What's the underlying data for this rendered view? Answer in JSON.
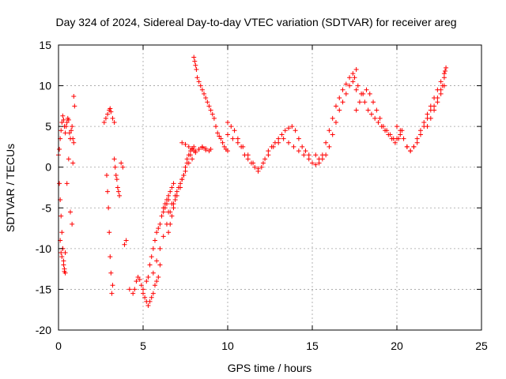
{
  "chart_data": {
    "type": "scatter",
    "title": "Day 324 of 2024, Sidereal Day-to-day VTEC variation (SDTVAR) for receiver areg",
    "xlabel": "GPS time / hours",
    "ylabel": "SDTVAR / TECUs",
    "xlim": [
      0,
      25
    ],
    "ylim": [
      -20,
      15
    ],
    "xticks": [
      0,
      5,
      10,
      15,
      20,
      25
    ],
    "yticks": [
      -20,
      -15,
      -10,
      -5,
      0,
      5,
      10,
      15
    ],
    "grid": true,
    "marker": "+",
    "color": "#ff0000",
    "series": [
      {
        "name": "SDTVAR",
        "x": [
          0.0,
          0.05,
          0.1,
          0.15,
          0.2,
          0.25,
          0.3,
          0.35,
          0.4,
          0.45,
          0.5,
          0.55,
          0.6,
          0.65,
          0.7,
          0.75,
          0.8,
          0.85,
          0.9,
          0.95,
          0.05,
          0.1,
          0.15,
          0.2,
          0.25,
          0.3,
          0.35,
          0.4,
          0.1,
          0.15,
          0.2,
          0.25,
          0.3,
          0.35,
          0.4,
          0.5,
          0.6,
          0.7,
          0.8,
          0.85,
          0.9,
          2.7,
          2.8,
          2.9,
          3.0,
          3.05,
          3.1,
          3.2,
          3.3,
          2.85,
          2.9,
          2.95,
          3.0,
          3.05,
          3.1,
          3.15,
          3.2,
          3.3,
          3.35,
          3.4,
          3.45,
          3.5,
          3.55,
          3.6,
          3.7,
          3.8,
          3.9,
          4.0,
          4.2,
          4.4,
          4.5,
          4.6,
          4.7,
          4.8,
          4.9,
          5.0,
          5.0,
          5.1,
          5.2,
          5.3,
          5.4,
          5.5,
          5.6,
          5.7,
          5.8,
          5.9,
          6.0,
          5.2,
          5.3,
          5.4,
          5.5,
          5.6,
          5.7,
          5.8,
          5.9,
          6.0,
          6.1,
          6.2,
          6.3,
          6.4,
          6.5,
          5.6,
          5.8,
          6.0,
          6.2,
          6.4,
          6.6,
          6.8,
          7.0,
          7.2,
          7.4,
          7.6,
          7.8,
          8.0,
          6.5,
          6.6,
          6.7,
          6.8,
          6.9,
          7.0,
          7.1,
          7.2,
          7.3,
          7.4,
          7.5,
          7.6,
          7.7,
          7.8,
          7.9,
          8.0,
          6.2,
          6.3,
          6.4,
          6.5,
          6.6,
          6.7,
          6.8,
          6.5,
          6.7,
          6.9,
          7.1,
          7.3,
          7.5,
          7.7,
          7.9,
          8.1,
          8.3,
          8.5,
          8.7,
          7.3,
          7.5,
          7.7,
          7.9,
          8.1,
          8.3,
          8.5,
          8.7,
          8.9,
          9.0,
          8.0,
          8.05,
          8.1,
          8.15,
          8.2,
          8.3,
          8.4,
          8.5,
          8.6,
          8.7,
          8.8,
          8.9,
          9.0,
          9.1,
          9.2,
          9.3,
          9.4,
          9.5,
          9.6,
          9.7,
          9.8,
          9.9,
          10.0,
          10.0,
          10.2,
          10.4,
          10.6,
          10.8,
          11.0,
          11.2,
          11.4,
          11.6,
          11.8,
          12.0,
          12.2,
          12.4,
          12.6,
          12.8,
          13.0,
          13.2,
          13.4,
          13.6,
          13.8,
          14.0,
          14.2,
          14.4,
          14.6,
          14.8,
          10.0,
          10.3,
          10.6,
          10.9,
          11.2,
          11.5,
          11.8,
          12.1,
          12.4,
          12.7,
          13.0,
          13.3,
          13.6,
          13.9,
          14.2,
          14.5,
          14.8,
          15.0,
          15.2,
          15.4,
          15.6,
          15.8,
          16.0,
          16.2,
          16.4,
          16.6,
          16.8,
          17.0,
          17.2,
          17.4,
          17.6,
          15.2,
          15.4,
          15.6,
          15.8,
          16.0,
          16.2,
          16.4,
          16.6,
          16.8,
          17.0,
          17.2,
          17.4,
          17.6,
          17.5,
          17.7,
          17.9,
          18.1,
          18.3,
          18.5,
          18.7,
          18.9,
          19.1,
          19.3,
          19.5,
          19.7,
          19.9,
          20.1,
          20.3,
          17.6,
          17.8,
          18.0,
          18.2,
          18.4,
          18.6,
          18.8,
          19.0,
          19.2,
          19.4,
          19.6,
          19.8,
          20.0,
          20.2,
          20.0,
          20.2,
          20.4,
          20.6,
          20.8,
          21.0,
          21.2,
          21.4,
          21.6,
          21.8,
          22.0,
          22.2,
          22.4,
          22.6,
          22.8,
          20.6,
          20.8,
          21.0,
          21.2,
          21.4,
          21.6,
          21.8,
          22.0,
          22.2,
          22.4,
          22.6,
          22.8,
          21.8,
          22.0,
          22.2,
          22.4,
          22.6,
          22.7,
          22.8,
          22.85,
          22.9
        ],
        "y": [
          1.5,
          2.2,
          3.5,
          4.5,
          5.5,
          6.3,
          5.8,
          5.0,
          4.2,
          5.0,
          5.5,
          6.0,
          5.8,
          4.2,
          3.5,
          4.5,
          5.0,
          3.5,
          8.7,
          7.5,
          -2.0,
          -4.0,
          -6.0,
          -8.0,
          -10.0,
          -11.5,
          -12.5,
          -13.0,
          -9.0,
          -10.5,
          -11.0,
          -10.0,
          -12.0,
          -12.8,
          -10.5,
          -2.0,
          1.0,
          -5.5,
          -7.0,
          0.5,
          3.0,
          5.5,
          6.0,
          6.5,
          7.0,
          7.2,
          6.8,
          6.0,
          5.5,
          -1.0,
          -3.0,
          -5.0,
          -8.0,
          -11.0,
          -13.0,
          -15.5,
          -14.5,
          1.0,
          0.0,
          -1.0,
          -1.5,
          -2.5,
          -3.0,
          -3.5,
          0.5,
          0.0,
          -9.5,
          -9.0,
          -15.0,
          -15.5,
          -15.0,
          -14.0,
          -13.5,
          -13.8,
          -14.5,
          -15.5,
          -15.0,
          -16.0,
          -16.5,
          -17.0,
          -16.5,
          -16.0,
          -15.5,
          -14.5,
          -14.0,
          -13.5,
          -12.0,
          -14.0,
          -13.5,
          -12.0,
          -11.0,
          -10.0,
          -9.0,
          -8.0,
          -7.5,
          -7.0,
          -6.0,
          -5.5,
          -5.0,
          -4.5,
          -4.0,
          -13.0,
          -11.5,
          -10.0,
          -8.5,
          -7.0,
          -5.5,
          -4.5,
          -3.5,
          -2.5,
          -1.0,
          0.5,
          1.5,
          2.0,
          -8.0,
          -7.0,
          -6.0,
          -5.0,
          -4.0,
          -3.0,
          -2.5,
          -2.0,
          -1.5,
          -1.0,
          0.0,
          1.0,
          1.5,
          2.0,
          2.2,
          2.5,
          -5.0,
          -4.5,
          -4.0,
          -3.5,
          -3.0,
          -2.5,
          -2.0,
          -5.5,
          -4.5,
          -3.5,
          -2.5,
          -1.5,
          -0.5,
          0.5,
          1.0,
          1.8,
          2.2,
          2.5,
          2.3,
          3.0,
          2.8,
          2.5,
          2.3,
          2.0,
          2.2,
          2.4,
          2.1,
          2.0,
          2.2,
          13.5,
          13.0,
          12.5,
          12.0,
          11.0,
          10.5,
          10.0,
          9.5,
          9.0,
          8.5,
          8.0,
          7.5,
          7.0,
          6.5,
          6.0,
          5.0,
          4.2,
          3.8,
          3.5,
          3.0,
          2.5,
          2.2,
          2.0,
          5.5,
          5.0,
          4.5,
          3.5,
          2.5,
          1.5,
          1.0,
          0.5,
          0.0,
          -0.5,
          0.0,
          1.0,
          2.0,
          2.5,
          3.0,
          3.5,
          4.0,
          4.5,
          4.8,
          5.0,
          4.5,
          3.5,
          2.5,
          2.0,
          1.5,
          4.0,
          3.5,
          3.0,
          2.5,
          1.5,
          0.5,
          -0.2,
          0.5,
          1.5,
          2.5,
          3.0,
          3.5,
          3.0,
          2.5,
          2.0,
          1.5,
          1.0,
          0.5,
          0.3,
          0.5,
          1.5,
          3.0,
          4.5,
          6.0,
          7.5,
          8.5,
          9.5,
          10.2,
          11.0,
          11.5,
          12.0,
          1.5,
          1.0,
          1.0,
          1.5,
          2.5,
          4.0,
          5.5,
          7.0,
          8.0,
          9.0,
          10.0,
          10.5,
          9.5,
          11.0,
          10.0,
          9.0,
          8.0,
          7.0,
          6.5,
          6.0,
          5.5,
          5.0,
          4.5,
          4.0,
          3.5,
          3.0,
          3.5,
          4.5,
          7.0,
          8.0,
          9.0,
          9.5,
          9.0,
          8.0,
          7.0,
          6.0,
          5.0,
          4.5,
          4.0,
          3.5,
          3.5,
          4.0,
          5.0,
          4.5,
          3.5,
          2.5,
          2.0,
          2.5,
          3.5,
          4.5,
          5.5,
          6.5,
          7.5,
          8.5,
          9.5,
          10.5,
          11.5,
          2.5,
          2.0,
          2.5,
          3.0,
          4.0,
          5.0,
          6.0,
          7.0,
          7.5,
          8.5,
          9.5,
          10.0,
          5.0,
          6.0,
          7.0,
          8.0,
          9.0,
          10.0,
          11.0,
          11.8,
          12.2
        ]
      }
    ]
  }
}
